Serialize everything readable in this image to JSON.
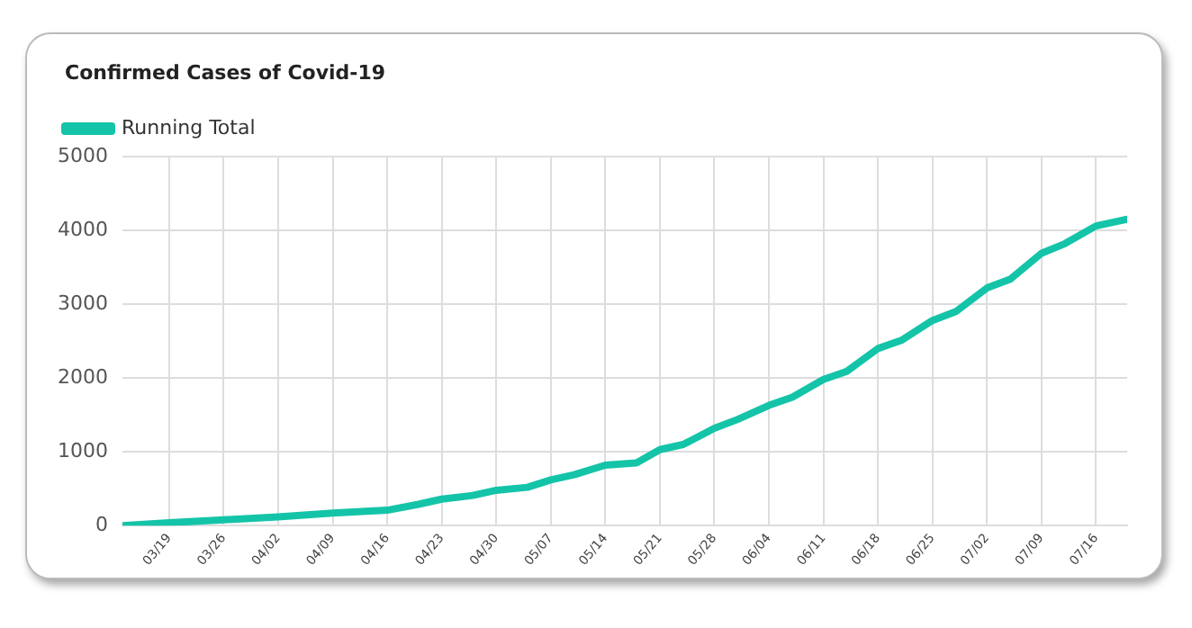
{
  "chart_data": {
    "type": "line",
    "title": "Confirmed Cases of Covid-19",
    "x": [
      "--03-13",
      "--03-19",
      "--03-26",
      "--04-02",
      "--04-09",
      "--04-16",
      "--04-20",
      "--04-23",
      "--04-27",
      "--04-30",
      "--05-04",
      "--05-07",
      "--05-10",
      "--05-14",
      "--05-18",
      "--05-21",
      "--05-24",
      "--05-28",
      "--05-31",
      "--06-04",
      "--06-07",
      "--06-11",
      "--06-14",
      "--06-18",
      "--06-21",
      "--06-25",
      "--06-28",
      "--07-02",
      "--07-05",
      "--07-09",
      "--07-12",
      "--07-16",
      "--07-20"
    ],
    "series": [
      {
        "name": "Running Total",
        "color": "#14c4a8",
        "values": [
          0,
          40,
          80,
          120,
          170,
          210,
          290,
          360,
          410,
          480,
          520,
          620,
          690,
          820,
          850,
          1030,
          1100,
          1320,
          1440,
          1630,
          1740,
          1980,
          2090,
          2400,
          2510,
          2780,
          2900,
          3220,
          3340,
          3690,
          3820,
          4060,
          4150
        ]
      }
    ],
    "xlim": [
      "--03-13",
      "--07-20"
    ],
    "xticks": [
      {
        "value": "--03-19",
        "label": "03/19"
      },
      {
        "value": "--03-26",
        "label": "03/26"
      },
      {
        "value": "--04-02",
        "label": "04/02"
      },
      {
        "value": "--04-09",
        "label": "04/09"
      },
      {
        "value": "--04-16",
        "label": "04/16"
      },
      {
        "value": "--04-23",
        "label": "04/23"
      },
      {
        "value": "--04-30",
        "label": "04/30"
      },
      {
        "value": "--05-07",
        "label": "05/07"
      },
      {
        "value": "--05-14",
        "label": "05/14"
      },
      {
        "value": "--05-21",
        "label": "05/21"
      },
      {
        "value": "--05-28",
        "label": "05/28"
      },
      {
        "value": "--06-04",
        "label": "06/04"
      },
      {
        "value": "--06-11",
        "label": "06/11"
      },
      {
        "value": "--06-18",
        "label": "06/18"
      },
      {
        "value": "--06-25",
        "label": "06/25"
      },
      {
        "value": "--07-02",
        "label": "07/02"
      },
      {
        "value": "--07-09",
        "label": "07/09"
      },
      {
        "value": "--07-16",
        "label": "07/16"
      }
    ],
    "ylim": [
      0,
      5000
    ],
    "yticks": [
      0,
      1000,
      2000,
      3000,
      4000,
      5000
    ],
    "grid": true,
    "legend": "top left",
    "marker": "none",
    "line_style": "solid"
  }
}
